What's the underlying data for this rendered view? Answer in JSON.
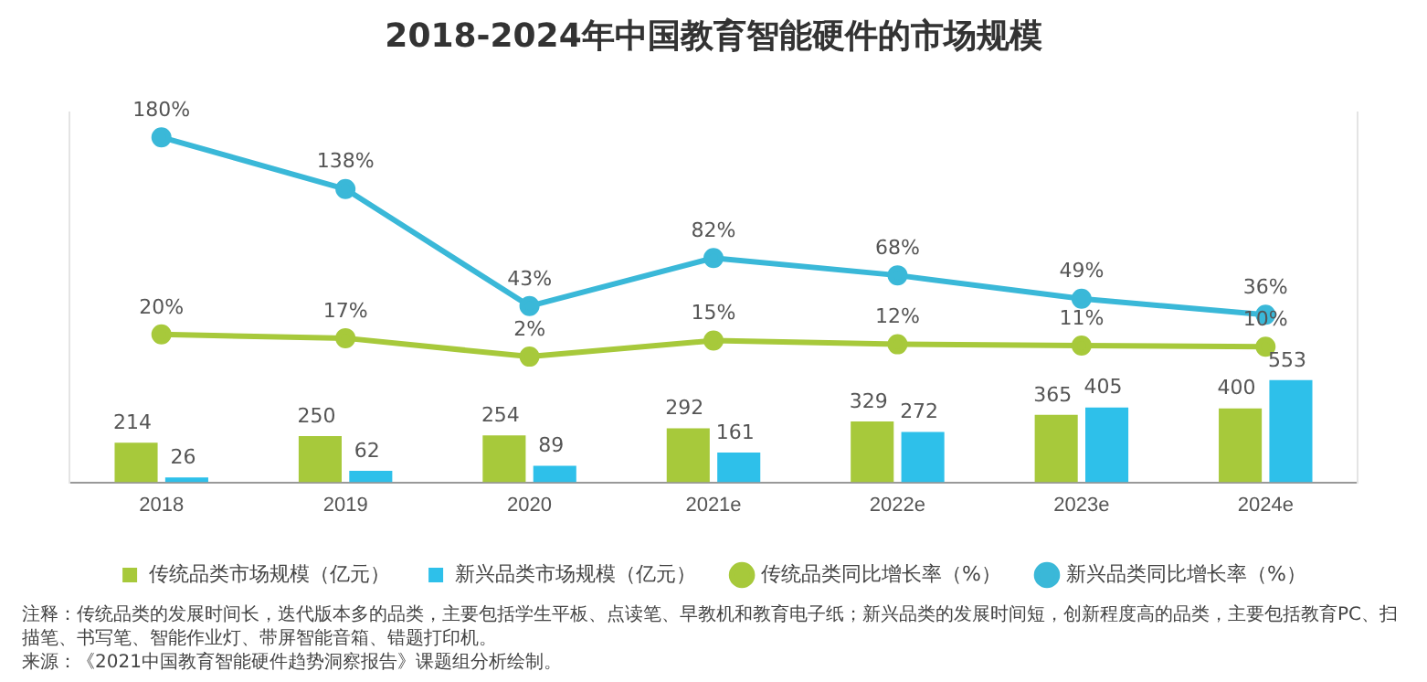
{
  "chart_data": {
    "type": "bar",
    "title": "2018-2024年中国教育智能硬件的市场规模",
    "categories": [
      "2018",
      "2019",
      "2020",
      "2021e",
      "2022e",
      "2023e",
      "2024e"
    ],
    "series": [
      {
        "name": "传统品类市场规模（亿元）",
        "color": "#a7c93b",
        "values": [
          214,
          250,
          254,
          292,
          329,
          365,
          400
        ]
      },
      {
        "name": "新兴品类市场规模（亿元）",
        "color": "#2ec0ea",
        "values": [
          26,
          62,
          89,
          161,
          272,
          405,
          553
        ]
      },
      {
        "name": "传统品类同比增长率（%）",
        "type": "line",
        "axis": "y2",
        "color": "#a7c93b",
        "values": [
          20,
          17,
          2,
          15,
          12,
          11,
          10
        ],
        "value_labels": [
          "20%",
          "17%",
          "2%",
          "15%",
          "12%",
          "11%",
          "10%"
        ]
      },
      {
        "name": "新兴品类同比增长率（%）",
        "type": "line",
        "axis": "y2",
        "color": "#3ab8d8",
        "values": [
          180,
          138,
          43,
          82,
          68,
          49,
          36
        ],
        "value_labels": [
          "180%",
          "138%",
          "43%",
          "82%",
          "68%",
          "49%",
          "36%"
        ]
      }
    ],
    "ylim": [
      0,
      2000
    ],
    "y2lim": [
      -100,
      200
    ],
    "tick_labels": "x",
    "grid": false,
    "legend": "bottom",
    "marker": "circle",
    "line_style": "solid",
    "data_labels": true,
    "annotations": [
      "注释：传统品类的发展时间长，迭代版本多的品类，主要包括学生平板、点读笔、早教机和教育电子纸；新兴品类的发展时间短，创新程度高的品类，主要包括教育PC、扫描笔、书写笔、智能作业灯、带屏智能音箱、错题打印机。",
      "来源：《2021中国教育智能硬件趋势洞察报告》课题组分析绘制。"
    ]
  }
}
